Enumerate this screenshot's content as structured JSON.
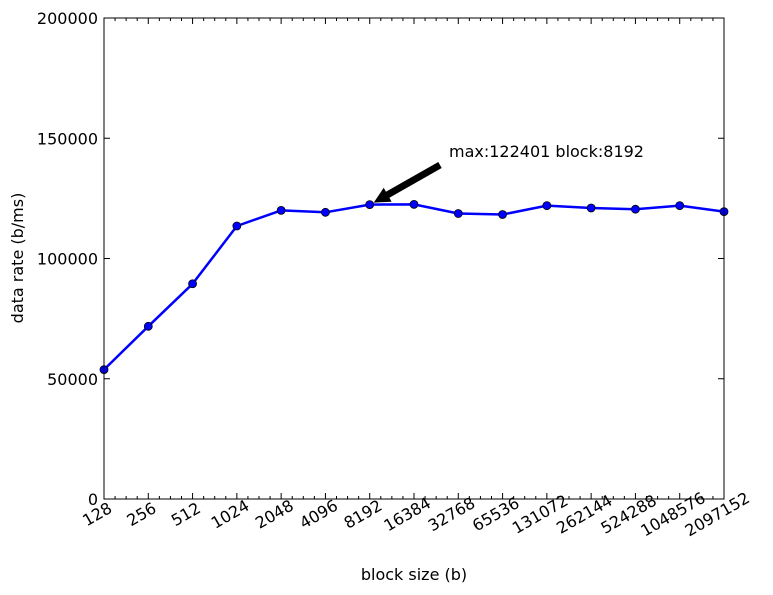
{
  "chart_data": {
    "type": "line",
    "title": "",
    "xlabel": "block size (b)",
    "ylabel": "data rate (b/ms)",
    "x_scale": "log2",
    "categories": [
      "128",
      "256",
      "512",
      "1024",
      "2048",
      "4096",
      "8192",
      "16384",
      "32768",
      "65536",
      "131072",
      "262144",
      "524288",
      "1048576",
      "2097152"
    ],
    "x": [
      128,
      256,
      512,
      1024,
      2048,
      4096,
      8192,
      16384,
      32768,
      65536,
      131072,
      262144,
      524288,
      1048576,
      2097152
    ],
    "series": [
      {
        "color": "#0000ff",
        "values": [
          53800,
          71800,
          89500,
          113500,
          120000,
          119200,
          122401,
          122500,
          118700,
          118300,
          122000,
          121000,
          120500,
          122000,
          119500
        ]
      }
    ],
    "xlim": [
      128,
      2097152
    ],
    "ylim": [
      0,
      200000
    ],
    "yticks": [
      0,
      50000,
      100000,
      150000,
      200000
    ],
    "ytick_labels": [
      "0",
      "50000",
      "100000",
      "150000",
      "200000"
    ],
    "grid": false,
    "annotation": {
      "text": "max:122401 block:8192",
      "x": 8192,
      "y": 122401
    }
  }
}
